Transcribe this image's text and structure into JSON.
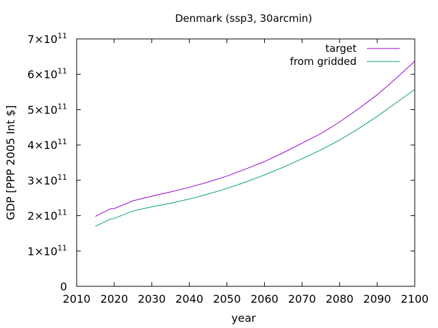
{
  "chart_data": {
    "type": "line",
    "title": "Denmark (ssp3, 30arcmin)",
    "xlabel": "year",
    "ylabel": "GDP [PPP 2005 Int $]",
    "xlim": [
      2010,
      2100
    ],
    "ylim": [
      0,
      700000000000
    ],
    "x_ticks": [
      2010,
      2020,
      2030,
      2040,
      2050,
      2060,
      2070,
      2080,
      2090,
      2100
    ],
    "y_ticks": [
      {
        "value": 0,
        "mantissa": "0",
        "exponent": ""
      },
      {
        "value": 100000000000,
        "mantissa": "1×10",
        "exponent": "11"
      },
      {
        "value": 200000000000,
        "mantissa": "2×10",
        "exponent": "11"
      },
      {
        "value": 300000000000,
        "mantissa": "3×10",
        "exponent": "11"
      },
      {
        "value": 400000000000,
        "mantissa": "4×10",
        "exponent": "11"
      },
      {
        "value": 500000000000,
        "mantissa": "5×10",
        "exponent": "11"
      },
      {
        "value": 600000000000,
        "mantissa": "6×10",
        "exponent": "11"
      },
      {
        "value": 700000000000,
        "mantissa": "7×10",
        "exponent": "11"
      }
    ],
    "legend_position": "top-right",
    "x": [
      2015,
      2019,
      2020,
      2025,
      2030,
      2035,
      2040,
      2045,
      2050,
      2055,
      2060,
      2065,
      2070,
      2075,
      2080,
      2085,
      2090,
      2095,
      2100
    ],
    "series": [
      {
        "name": "target",
        "color": "#9400d3",
        "values": [
          198000000000.0,
          219000000000.0,
          220000000000.0,
          242000000000.0,
          255000000000.0,
          267000000000.0,
          280000000000.0,
          295000000000.0,
          312000000000.0,
          332000000000.0,
          353000000000.0,
          378000000000.0,
          405000000000.0,
          432000000000.0,
          465000000000.0,
          502000000000.0,
          542000000000.0,
          588000000000.0,
          637000000000.0
        ]
      },
      {
        "name": "from gridded",
        "color": "#009e73",
        "values": [
          170000000000.0,
          190000000000.0,
          192000000000.0,
          213000000000.0,
          225000000000.0,
          235000000000.0,
          247000000000.0,
          261000000000.0,
          277000000000.0,
          295000000000.0,
          315000000000.0,
          337000000000.0,
          361000000000.0,
          386000000000.0,
          414000000000.0,
          446000000000.0,
          481000000000.0,
          519000000000.0,
          557000000000.0
        ]
      }
    ]
  }
}
